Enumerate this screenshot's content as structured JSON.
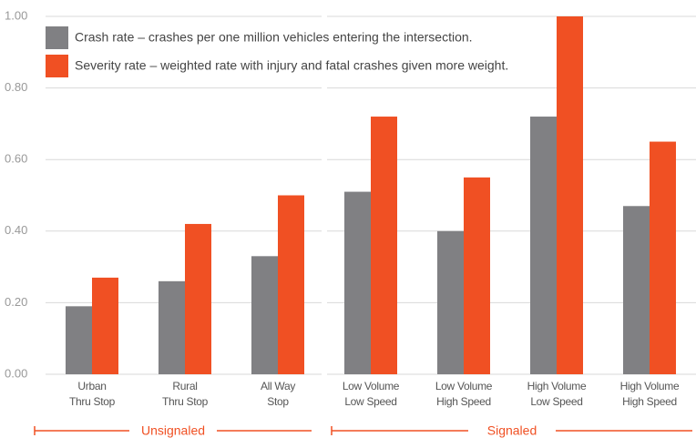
{
  "chart_data": {
    "type": "bar",
    "categories": [
      "Urban\nThru Stop",
      "Rural\nThru Stop",
      "All Way\nStop",
      "Low Volume\nLow Speed",
      "Low Volume\nHigh Speed",
      "High Volume\nLow Speed",
      "High Volume\nHigh Speed"
    ],
    "series": [
      {
        "name": "Crash rate – crashes per one million vehicles entering the intersection.",
        "color": "#808083",
        "values": [
          0.19,
          0.26,
          0.33,
          0.51,
          0.4,
          0.72,
          0.47
        ]
      },
      {
        "name": "Severity rate – weighted rate with injury and fatal crashes given more weight.",
        "color": "#f05023",
        "values": [
          0.27,
          0.42,
          0.5,
          0.72,
          0.55,
          1.0,
          0.65
        ]
      }
    ],
    "groups": [
      {
        "name": "Unsignaled",
        "size": 3
      },
      {
        "name": "Signaled",
        "size": 4
      }
    ],
    "ylim": [
      0,
      1
    ],
    "yticks": [
      {
        "value": 0,
        "label": "0.00"
      },
      {
        "value": 0.2,
        "label": "0.20"
      },
      {
        "value": 0.4,
        "label": "0.40"
      },
      {
        "value": 0.6,
        "label": "0.60"
      },
      {
        "value": 0.8,
        "label": "0.80"
      },
      {
        "value": 1,
        "label": "1.00"
      }
    ],
    "grid": true,
    "legend": "top-left"
  }
}
